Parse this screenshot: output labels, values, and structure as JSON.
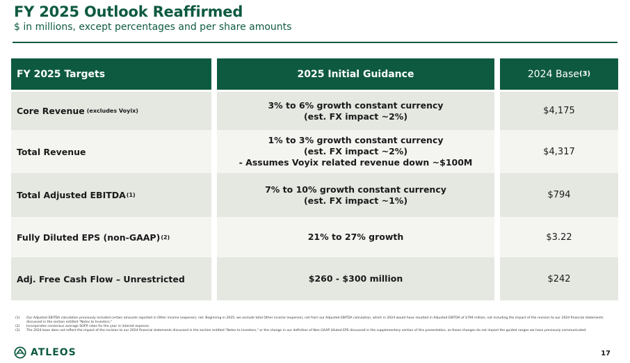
{
  "header": {
    "title": "FY 2025 Outlook Reaffirmed",
    "subtitle": "$ in millions, except percentages and per share amounts"
  },
  "table": {
    "col1_header": "FY 2025 Targets",
    "col2_header": "2025 Initial Guidance",
    "col3_header": "2024 Base",
    "col3_header_note": "(3)",
    "rows": [
      {
        "label": "Core Revenue",
        "label_note": "(excludes Voyix)",
        "guidance": [
          "3% to 6% growth constant currency",
          "(est. FX impact ~2%)"
        ],
        "base": "$4,175"
      },
      {
        "label": "Total Revenue",
        "guidance": [
          "1% to 3% growth constant currency",
          "(est. FX impact ~2%)",
          "- Assumes Voyix related revenue down ~$100M"
        ],
        "base": "$4,317"
      },
      {
        "label": "Total Adjusted EBITDA",
        "label_sup": "(1)",
        "guidance": [
          "7% to 10% growth constant currency",
          "(est. FX impact ~1%)"
        ],
        "base": "$794"
      },
      {
        "label": "Fully Diluted EPS (non-GAAP)",
        "label_sup": "(2)",
        "guidance": [
          "21% to 27% growth"
        ],
        "base": "$3.22"
      },
      {
        "label": "Adj. Free Cash Flow – Unrestricted",
        "guidance": [
          "$260 - $300 million"
        ],
        "base": "$242"
      }
    ]
  },
  "footnotes": [
    {
      "num": "(1)",
      "text": "Our Adjusted EBITDA calculation previously included certain amounts reported in Other income (expense), net. Beginning in 2025, we exclude total Other income (expense), net from our Adjusted EBITDA calculation, which in 2024 would have resulted in Adjusted EBITDA of $794 million, not including the impact of the revision to our 2024 financial statements discussed in the section entitled \"Notes to Investors.\""
    },
    {
      "num": "(2)",
      "text": "Incorporates consensus average SOFR rates for the year in interest expense."
    },
    {
      "num": "(3)",
      "text": "The 2024 base does not reflect the impact of the revision to our 2024 financial statements discussed in the section entitled \"Notes to Investors,\" or the change in our definition of Non-GAAP diluted EPS discussed in the supplementary section of this presentation, as those changes do not impact the guided ranges we have previously communicated."
    }
  ],
  "footer": {
    "logo_text": "ATLEOS",
    "page_number": "17"
  },
  "colors": {
    "brand_green": "#0e5a40",
    "row_shade": "#e5e8e1",
    "row_plain": "#f4f5f1"
  }
}
